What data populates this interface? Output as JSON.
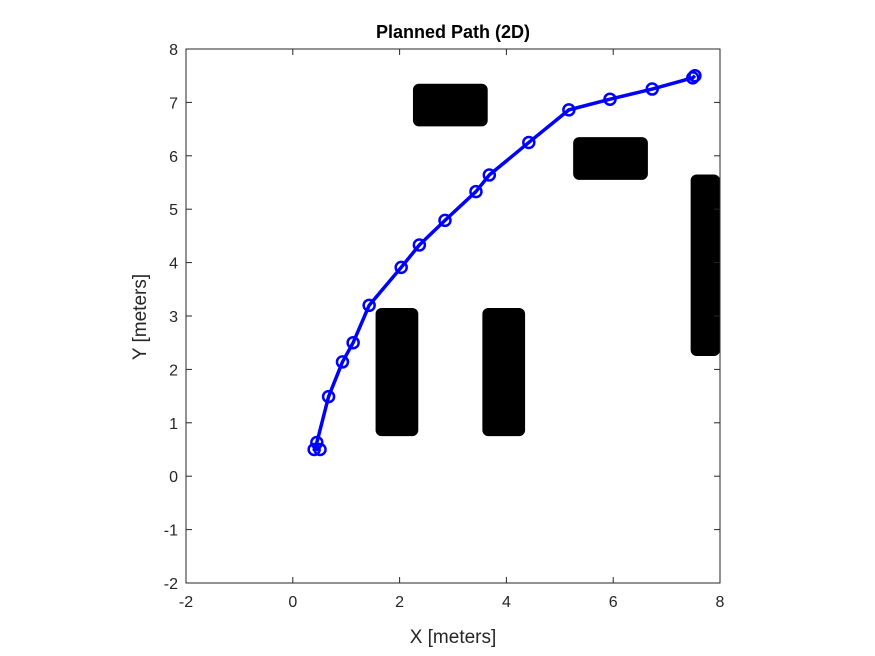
{
  "chart_data": {
    "type": "line",
    "title": "Planned Path (2D)",
    "xlabel": "X [meters]",
    "ylabel": "Y [meters]",
    "xlim": [
      -2,
      8
    ],
    "ylim": [
      -2,
      8
    ],
    "xticks": [
      "-2",
      "0",
      "2",
      "4",
      "6",
      "8"
    ],
    "yticks": [
      "-2",
      "-1",
      "0",
      "1",
      "2",
      "3",
      "4",
      "5",
      "6",
      "7",
      "8"
    ],
    "grid": false,
    "series": [
      {
        "color": "#0000ff",
        "marker": "circle",
        "x": [
          0.51,
          0.4,
          0.45,
          0.67,
          0.93,
          1.13,
          1.43,
          2.03,
          2.37,
          2.85,
          3.43,
          3.68,
          4.42,
          5.17,
          5.94,
          6.73,
          7.49,
          7.53
        ],
        "y": [
          0.5,
          0.5,
          0.63,
          1.49,
          2.14,
          2.5,
          3.2,
          3.91,
          4.33,
          4.79,
          5.33,
          5.64,
          6.25,
          6.86,
          7.06,
          7.25,
          7.46,
          7.5
        ]
      }
    ],
    "obstacles": [
      {
        "x": [
          2.25,
          3.65
        ],
        "y": [
          6.55,
          7.35
        ]
      },
      {
        "x": [
          5.25,
          6.65
        ],
        "y": [
          5.55,
          6.35
        ]
      },
      {
        "x": [
          7.45,
          8.0
        ],
        "y": [
          2.25,
          5.65
        ]
      },
      {
        "x": [
          1.55,
          2.35
        ],
        "y": [
          0.75,
          3.15
        ]
      },
      {
        "x": [
          3.55,
          4.35
        ],
        "y": [
          0.75,
          3.15
        ]
      }
    ],
    "obstacle_color": "#000000"
  }
}
